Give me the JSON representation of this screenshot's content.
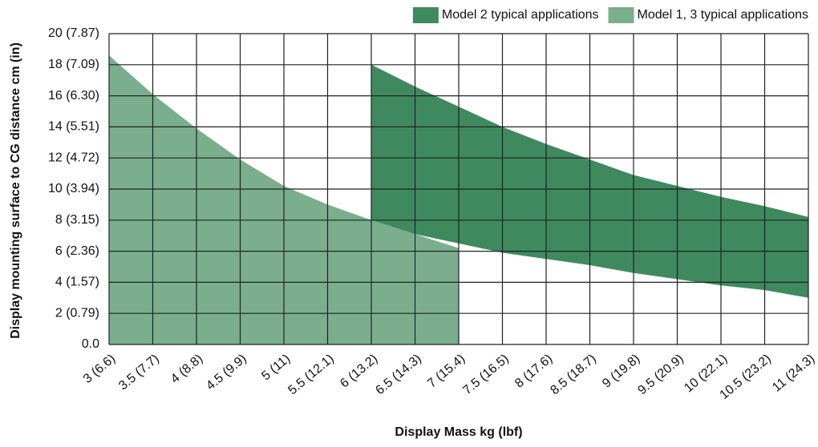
{
  "chart_data": {
    "type": "area",
    "xlabel": "Display Mass kg (lbf)",
    "ylabel": "Display mounting surface to CG distance cm (in)",
    "categories": [
      "3 (6.6)",
      "3.5 (7.7)",
      "4 (8.8)",
      "4.5 (9.9)",
      "5 (11)",
      "5.5 (12.1)",
      "6 (13.2)",
      "6.5 (14.3)",
      "7 (15.4)",
      "7.5 (16.5)",
      "8 (17.6)",
      "8.5 (18.7)",
      "9 (19.8)",
      "9.5 (20.9)",
      "10 (22.1)",
      "10.5 (23.2)",
      "11 (24.3)"
    ],
    "series": [
      {
        "name": "Model 2 typical applications",
        "color": "#3e8a5e",
        "values": [
          null,
          null,
          null,
          null,
          null,
          null,
          18,
          16.6,
          15.3,
          14.0,
          12.9,
          11.9,
          10.9,
          10.2,
          9.5,
          8.9,
          8.2
        ],
        "lower": [
          null,
          null,
          null,
          null,
          null,
          null,
          8,
          7.1,
          6.5,
          5.9,
          5.5,
          5.1,
          4.6,
          4.2,
          3.8,
          3.5,
          3.0
        ]
      },
      {
        "name": "Model 1, 3 typical applications",
        "color": "#7aae8c",
        "values": [
          18.6,
          16.1,
          13.9,
          11.9,
          10.2,
          9.0,
          8.0,
          7.1,
          6.2,
          null,
          null,
          null,
          null,
          null,
          null,
          null,
          null
        ],
        "lower": [
          0,
          0,
          0,
          0,
          0,
          0,
          0,
          0,
          0,
          null,
          null,
          null,
          null,
          null,
          null,
          null,
          null
        ]
      }
    ],
    "ylim": [
      0,
      20
    ],
    "yticks": [
      {
        "value": 0,
        "label": "0.0"
      },
      {
        "value": 2,
        "label": "2 (0.79)"
      },
      {
        "value": 4,
        "label": "4 (1.57)"
      },
      {
        "value": 6,
        "label": "6 (2.36)"
      },
      {
        "value": 8,
        "label": "8 (3.15)"
      },
      {
        "value": 10,
        "label": "10 (3.94)"
      },
      {
        "value": 12,
        "label": "12 (4.72)"
      },
      {
        "value": 14,
        "label": "14 (5.51)"
      },
      {
        "value": 16,
        "label": "16 (6.30)"
      },
      {
        "value": 18,
        "label": "18 (7.09)"
      },
      {
        "value": 20,
        "label": "20 (7.87)"
      }
    ],
    "grid": true,
    "legend": "top-right"
  }
}
